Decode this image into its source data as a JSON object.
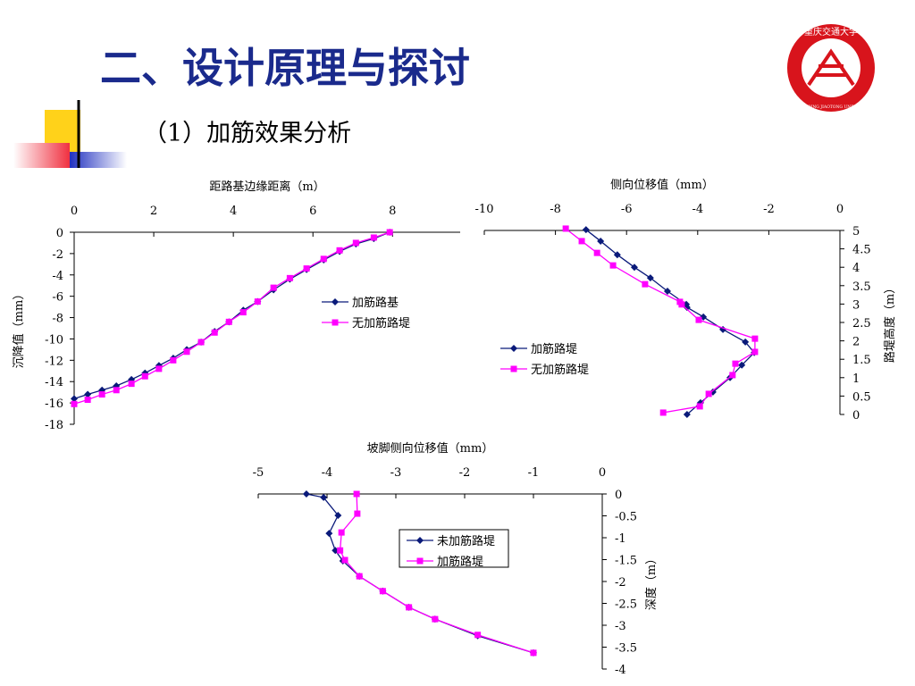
{
  "title": "二、设计原理与探讨",
  "subtitle": "（1）加筋效果分析",
  "logo": {
    "name": "重庆交通大学",
    "name_en": "CHONGQING JIAOTONG UNIVERSITY"
  },
  "chart_data": [
    {
      "type": "line",
      "xlabel": "距路基边缘距离（m）",
      "ylabel": "沉降值（mm）",
      "xlim": [
        0,
        9.7
      ],
      "xticks": [
        0,
        2,
        4,
        6,
        8
      ],
      "ylim": [
        -18,
        0
      ],
      "yticks": [
        0,
        -2,
        -4,
        -6,
        -8,
        -10,
        -12,
        -14,
        -16,
        -18
      ],
      "series": [
        {
          "name": "加筋路基",
          "color": "#0a1a7a",
          "marker": "diamond",
          "x": [
            0,
            0.34,
            0.7,
            1.06,
            1.44,
            1.78,
            2.13,
            2.49,
            2.83,
            3.19,
            3.53,
            3.89,
            4.25,
            4.61,
            5.01,
            5.42,
            5.84,
            6.27,
            6.67,
            7.08,
            7.53,
            7.93
          ],
          "values": [
            -15.6,
            -15.2,
            -14.8,
            -14.4,
            -13.8,
            -13.2,
            -12.5,
            -11.8,
            -11.0,
            -10.3,
            -9.3,
            -8.4,
            -7.3,
            -6.5,
            -5.4,
            -4.4,
            -3.5,
            -2.6,
            -1.8,
            -1.1,
            -0.6,
            0
          ]
        },
        {
          "name": "无加筋路堤",
          "color": "#ff00ff",
          "marker": "square",
          "x": [
            0,
            0.34,
            0.7,
            1.06,
            1.44,
            1.78,
            2.13,
            2.49,
            2.83,
            3.19,
            3.53,
            3.89,
            4.25,
            4.61,
            5.01,
            5.42,
            5.84,
            6.27,
            6.67,
            7.08,
            7.53,
            7.93
          ],
          "values": [
            -16.1,
            -15.7,
            -15.2,
            -14.8,
            -14.2,
            -13.5,
            -12.8,
            -12.0,
            -11.2,
            -10.3,
            -9.4,
            -8.4,
            -7.5,
            -6.5,
            -5.2,
            -4.3,
            -3.4,
            -2.5,
            -1.7,
            -1.0,
            -0.5,
            0
          ]
        }
      ]
    },
    {
      "type": "line",
      "xlabel": "侧向位移值（mm）",
      "ylabel": "路堤高度（m）",
      "xlim": [
        -10,
        0
      ],
      "xticks": [
        -10,
        -8,
        -6,
        -4,
        -2,
        0
      ],
      "ylim": [
        0,
        5
      ],
      "yticks": [
        5,
        4.5,
        4,
        3.5,
        3,
        2.5,
        2,
        1.5,
        1,
        0.5,
        0
      ],
      "series": [
        {
          "name": "加筋路堤",
          "color": "#0a1a7a",
          "marker": "diamond",
          "x": [
            -7.14,
            -6.73,
            -6.26,
            -5.78,
            -5.33,
            -4.85,
            -4.32,
            -4.3,
            -3.84,
            -3.29,
            -2.66,
            -2.41,
            -2.76,
            -3.09,
            -3.57,
            -3.92,
            -4.3
          ],
          "values": [
            5.02,
            4.71,
            4.34,
            4.0,
            3.71,
            3.35,
            2.99,
            2.91,
            2.65,
            2.31,
            1.97,
            1.68,
            1.34,
            1.0,
            0.61,
            0.32,
            0
          ]
        },
        {
          "name": "无加筋路堤",
          "color": "#ff00ff",
          "marker": "square",
          "x": [
            -7.71,
            -7.26,
            -6.83,
            -6.38,
            -5.48,
            -4.5,
            -4.45,
            -3.97,
            -2.39,
            -2.39,
            -2.94,
            -3.02,
            -3.69,
            -3.94,
            -4.97
          ],
          "values": [
            5.05,
            4.71,
            4.39,
            4.05,
            3.54,
            3.06,
            2.99,
            2.57,
            2.06,
            1.7,
            1.38,
            1.07,
            0.56,
            0.22,
            0.05
          ]
        }
      ]
    },
    {
      "type": "line",
      "xlabel": "坡脚侧向位移值（mm）",
      "ylabel": "深度（m）",
      "xlim": [
        -5,
        0
      ],
      "xticks": [
        -5,
        -4,
        -3,
        -2,
        -1,
        0
      ],
      "ylim": [
        -4,
        0
      ],
      "yticks": [
        0,
        -0.5,
        -1,
        -1.5,
        -2,
        -2.5,
        -3,
        -3.5,
        -4
      ],
      "series": [
        {
          "name": "未加筋路堤",
          "color": "#0a1a7a",
          "marker": "diamond",
          "x": [
            -4.3,
            -4.05,
            -3.84,
            -3.97,
            -3.88,
            -3.77,
            -3.53,
            -3.19,
            -2.81,
            -2.43,
            -1.81,
            -1.0
          ],
          "values": [
            0,
            -0.08,
            -0.49,
            -0.9,
            -1.29,
            -1.53,
            -1.88,
            -2.22,
            -2.59,
            -2.86,
            -3.24,
            -3.63
          ]
        },
        {
          "name": "加筋路堤",
          "color": "#ff00ff",
          "marker": "square",
          "x": [
            -3.57,
            -3.56,
            -3.79,
            -3.81,
            -3.74,
            -3.53,
            -3.19,
            -2.81,
            -2.43,
            -1.81,
            -1.0
          ],
          "values": [
            0,
            -0.45,
            -0.88,
            -1.29,
            -1.51,
            -1.88,
            -2.22,
            -2.59,
            -2.86,
            -3.22,
            -3.63
          ]
        }
      ]
    }
  ]
}
